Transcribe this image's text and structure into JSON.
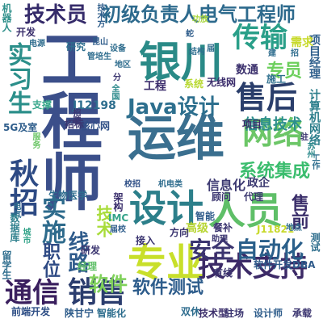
{
  "words": [
    {
      "text": "工程师",
      "color": "#3b4f8a"
    },
    {
      "text": "运维",
      "color": "#3a6f8f"
    },
    {
      "text": "银川",
      "color": "#2a8a87"
    },
    {
      "text": "网络",
      "color": "#6cc667"
    },
    {
      "text": "设计",
      "color": "#2c7f8a"
    },
    {
      "text": "人员",
      "color": "#5fbf68"
    },
    {
      "text": "专业",
      "color": "#c8df2a"
    },
    {
      "text": "技术支持",
      "color": "#3c2a67"
    },
    {
      "text": "传输",
      "color": "#2a9f89"
    },
    {
      "text": "售后",
      "color": "#2a3e6b"
    },
    {
      "text": "销售",
      "color": "#2b3d6e"
    },
    {
      "text": "通信",
      "color": "#3a1f5e"
    },
    {
      "text": "安全",
      "color": "#3b3570"
    },
    {
      "text": "自动化",
      "color": "#2a5f8a"
    },
    {
      "text": "秋招",
      "color": "#2d4a84"
    },
    {
      "text": "实施",
      "color": "#2e6b8c"
    },
    {
      "text": "线路",
      "color": "#2f5b8b"
    },
    {
      "text": "实习生",
      "color": "#2b8f8a"
    },
    {
      "text": "Java设计",
      "color": "#2d6f8e"
    },
    {
      "text": "技术员",
      "color": "#352b6a"
    },
    {
      "text": "初级负责人电气工程师",
      "color": "#2d6a8d"
    },
    {
      "text": "系统集成",
      "color": "#3bbd6e"
    },
    {
      "text": "专员",
      "color": "#6ccf5c"
    },
    {
      "text": "软件",
      "color": "#7fd15a"
    },
    {
      "text": "软件测试",
      "color": "#2e5d8c"
    },
    {
      "text": "信息技术",
      "color": "#2d8f8c"
    },
    {
      "text": "技术",
      "color": "#a8dc3a"
    },
    {
      "text": "职位",
      "color": "#2e4a84"
    },
    {
      "text": "工程",
      "color": "#3c2d6c"
    },
    {
      "text": "售前",
      "color": "#3a2e6a"
    },
    {
      "text": "计算机网络",
      "color": "#2d7f8c"
    },
    {
      "text": "信息化",
      "color": "#3d3a72"
    },
    {
      "text": "政企",
      "color": "#3a3870"
    },
    {
      "text": "项目经理",
      "color": "#2e5e8b"
    },
    {
      "text": "需求",
      "color": "#c7d928"
    },
    {
      "text": "数通",
      "color": "#3a2f6c"
    },
    {
      "text": "施工",
      "color": "#2e6f8e"
    },
    {
      "text": "无线网",
      "color": "#3a2c6b"
    },
    {
      "text": "系统",
      "color": "#b8d832"
    },
    {
      "text": "J12198",
      "color": "#2e6e8e"
    },
    {
      "text": "支撑",
      "color": "#36a68a"
    },
    {
      "text": "核心网",
      "color": "#2f4f86"
    },
    {
      "text": "招标",
      "color": "#3b3570"
    },
    {
      "text": "5G及室",
      "color": "#2e5d8b"
    },
    {
      "text": "生物医学",
      "color": "#2f6d8e"
    },
    {
      "text": "数据库",
      "color": "#2d7f8c"
    },
    {
      "text": "IMC",
      "color": "#35a48a"
    },
    {
      "text": "接入",
      "color": "#3b3570"
    },
    {
      "text": "智能",
      "color": "#2f5b8b"
    },
    {
      "text": "顾问",
      "color": "#3b3570"
    },
    {
      "text": "代理",
      "color": "#3d3a72"
    },
    {
      "text": "测试",
      "color": "#2f6e8d"
    },
    {
      "text": "研发",
      "color": "#3b3570"
    },
    {
      "text": "有线",
      "color": "#3b3570"
    },
    {
      "text": "软件开发DBA",
      "color": "#2f5b8b"
    },
    {
      "text": "前端开发",
      "color": "#2f4f86"
    },
    {
      "text": "双休",
      "color": "#2f6d8e"
    },
    {
      "text": "技术型",
      "color": "#3a2d6a"
    },
    {
      "text": "驻场",
      "color": "#3b3570"
    },
    {
      "text": "设计师",
      "color": "#2f5d8b"
    },
    {
      "text": "承载",
      "color": "#3b3570"
    },
    {
      "text": "陕甘宁",
      "color": "#2f5d8b"
    },
    {
      "text": "智能化",
      "color": "#2e6e8e"
    },
    {
      "text": "留学生",
      "color": "#2f6e8e"
    },
    {
      "text": "经理",
      "color": "#5fbf68"
    },
    {
      "text": "高级",
      "color": "#b7d532"
    },
    {
      "text": "餐补",
      "color": "#3b3570"
    },
    {
      "text": "助理",
      "color": "#3b3570"
    },
    {
      "text": "方向",
      "color": "#3b3570"
    },
    {
      "text": "J11821",
      "color": "#c8d92a"
    },
    {
      "text": "机器人",
      "color": "#2e8f8a"
    },
    {
      "text": "开发",
      "color": "#3a2f6c"
    },
    {
      "text": "研究",
      "color": "#2e6e8e"
    },
    {
      "text": "技术方",
      "color": "#2e5d8b"
    },
    {
      "text": "设备",
      "color": "#2f6d8e"
    },
    {
      "text": "全国",
      "color": "#2d8a8c"
    },
    {
      "text": "地区",
      "color": "#2f6d8e"
    },
    {
      "text": "架构",
      "color": "#3a2f6c"
    },
    {
      "text": "校招",
      "color": "#2f4f86"
    },
    {
      "text": "机电类",
      "color": "#2f6d8e"
    },
    {
      "text": "届校",
      "color": "#2e5d8b"
    },
    {
      "text": "项目",
      "color": "#3a2d6a"
    },
    {
      "text": "电气",
      "color": "#2f6d8e"
    },
    {
      "text": "城市",
      "color": "#35a48a"
    },
    {
      "text": "功放",
      "color": "#a8d63a"
    },
    {
      "text": "驻",
      "color": "#3b3570"
    },
    {
      "text": "苏州",
      "color": "#2d8a8c"
    },
    {
      "text": "管培生",
      "color": "#2f6d8e"
    },
    {
      "text": "昆山",
      "color": "#2f5d8b"
    },
    {
      "text": "招聘",
      "color": "#3b3570"
    },
    {
      "text": "服务",
      "color": "#6cc667"
    },
    {
      "text": "工作",
      "color": "#2f6e8e"
    },
    {
      "text": "地点",
      "color": "#2f6d8e"
    },
    {
      "text": "蛇",
      "color": "#2f5d8b"
    },
    {
      "text": "分",
      "color": "#3b3570"
    },
    {
      "text": "招",
      "color": "#2f6d8e"
    },
    {
      "text": "电源",
      "color": "#2f6d8e"
    },
    {
      "text": "届",
      "color": "#2f6d8e"
    },
    {
      "text": "建",
      "color": "#2f6d8e"
    },
    {
      "text": "结构",
      "color": "#2e6e8e"
    }
  ]
}
